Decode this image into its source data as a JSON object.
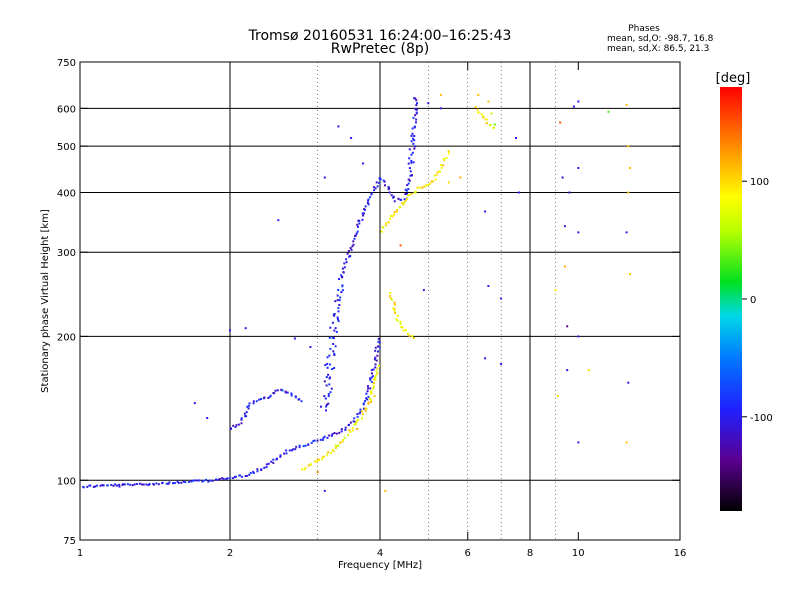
{
  "chart_data": {
    "type": "scatter",
    "title": "Tromsø 20160531 16:24:00–16:25:43",
    "subtitle": "RwPretec (8p)",
    "xlabel": "Frequency [MHz]",
    "ylabel": "Stationary phase Virtual Height [km]",
    "x_scale": "log",
    "y_scale": "log",
    "xlim": [
      1,
      16
    ],
    "ylim": [
      75,
      750
    ],
    "x_ticks": [
      1,
      2,
      4,
      6,
      8,
      10,
      16
    ],
    "x_tick_labels": [
      "1",
      "2",
      "4",
      "6",
      "8",
      "10",
      "16"
    ],
    "x_grid": [
      2,
      4,
      8
    ],
    "x_minor": [
      3,
      5,
      6,
      7,
      9
    ],
    "y_ticks": [
      75,
      100,
      200,
      300,
      400,
      500,
      600,
      750
    ],
    "y_tick_labels": [
      "75",
      "100",
      "200",
      "300",
      "400",
      "500",
      "600",
      "750"
    ],
    "y_grid": [
      100,
      200,
      300,
      400,
      500,
      600
    ],
    "grid": true,
    "stats": {
      "header": "Phases",
      "o_line": "mean, sd,O:  -98.7, 16.8",
      "x_line": "mean, sd,X:  86.5, 21.3"
    },
    "colorbar": {
      "label": "[deg]",
      "min": -180,
      "max": 180,
      "ticks": [
        100,
        0,
        -100
      ],
      "tick_labels": [
        "100",
        "0",
        "-100"
      ],
      "colormap": "rainbow (black-purple-blue-cyan-green-yellow-red)"
    },
    "series": [
      {
        "description": "O-mode trace (phase about -100 deg)",
        "phase": -100,
        "segments": [
          {
            "x": [
              1.0,
              1.3,
              1.6,
              1.85,
              2.0,
              2.2,
              2.4,
              2.6,
              2.8,
              3.0,
              3.2,
              3.4,
              3.55,
              3.7,
              3.8,
              3.9,
              4.0
            ],
            "y": [
              97,
              98,
              99,
              100,
              101,
              103,
              108,
              115,
              118,
              121,
              124,
              128,
              133,
              142,
              155,
              175,
              200
            ]
          },
          {
            "x": [
              3.1,
              3.25,
              3.4,
              3.55,
              3.7,
              3.85,
              4.0,
              4.1,
              4.3,
              4.5,
              4.6,
              4.7,
              4.72
            ],
            "y": [
              140,
              220,
              280,
              320,
              360,
              395,
              430,
              420,
              385,
              390,
              440,
              560,
              640
            ]
          },
          {
            "x": [
              2.0,
              2.1,
              2.2,
              2.4,
              2.5,
              2.7,
              2.8
            ],
            "y": [
              128,
              132,
              145,
              150,
              155,
              150,
              145
            ]
          }
        ]
      },
      {
        "description": "X-mode trace (phase about 90 deg)",
        "phase": 90,
        "segments": [
          {
            "x": [
              2.8,
              3.0,
              3.2,
              3.4,
              3.6,
              3.8,
              3.9,
              4.0
            ],
            "y": [
              105,
              110,
              115,
              122,
              132,
              145,
              160,
              175
            ]
          },
          {
            "x": [
              4.0,
              4.2,
              4.4,
              4.6,
              4.8,
              5.0,
              5.2,
              5.5
            ],
            "y": [
              330,
              355,
              375,
              395,
              410,
              415,
              430,
              490
            ]
          },
          {
            "x": [
              4.2,
              4.3,
              4.4,
              4.5,
              4.6,
              4.7
            ],
            "y": [
              245,
              225,
              210,
              205,
              200,
              198
            ]
          },
          {
            "x": [
              6.2,
              6.5,
              6.8
            ],
            "y": [
              600,
              570,
              540
            ]
          }
        ]
      }
    ],
    "scatter_points": [
      {
        "x": 3.0,
        "y": 104,
        "p": 130
      },
      {
        "x": 3.3,
        "y": 118,
        "p": 60
      },
      {
        "x": 3.6,
        "y": 128,
        "p": 120
      },
      {
        "x": 3.9,
        "y": 150,
        "p": 110
      },
      {
        "x": 6.3,
        "y": 640,
        "p": 110
      },
      {
        "x": 6.6,
        "y": 620,
        "p": 110
      },
      {
        "x": 6.7,
        "y": 585,
        "p": 60
      },
      {
        "x": 6.8,
        "y": 555,
        "p": 40
      },
      {
        "x": 6.5,
        "y": 365,
        "p": -100
      },
      {
        "x": 6.6,
        "y": 255,
        "p": -100
      },
      {
        "x": 6.5,
        "y": 180,
        "p": -100
      },
      {
        "x": 7.0,
        "y": 240,
        "p": -100
      },
      {
        "x": 7.0,
        "y": 175,
        "p": -100
      },
      {
        "x": 7.5,
        "y": 520,
        "p": -100
      },
      {
        "x": 7.6,
        "y": 400,
        "p": -100
      },
      {
        "x": 5.0,
        "y": 615,
        "p": -100
      },
      {
        "x": 5.3,
        "y": 640,
        "p": 110
      },
      {
        "x": 5.3,
        "y": 600,
        "p": -100
      },
      {
        "x": 9.2,
        "y": 560,
        "p": 150
      },
      {
        "x": 9.3,
        "y": 430,
        "p": -120
      },
      {
        "x": 9.4,
        "y": 340,
        "p": -100
      },
      {
        "x": 9.4,
        "y": 280,
        "p": 120
      },
      {
        "x": 9.5,
        "y": 210,
        "p": -140
      },
      {
        "x": 9.5,
        "y": 170,
        "p": -100
      },
      {
        "x": 9.6,
        "y": 400,
        "p": -120
      },
      {
        "x": 9.8,
        "y": 605,
        "p": -100
      },
      {
        "x": 10.0,
        "y": 620,
        "p": -100
      },
      {
        "x": 10.0,
        "y": 450,
        "p": -100
      },
      {
        "x": 10.0,
        "y": 330,
        "p": -100
      },
      {
        "x": 10.0,
        "y": 200,
        "p": -100
      },
      {
        "x": 10.0,
        "y": 120,
        "p": -100
      },
      {
        "x": 9.0,
        "y": 250,
        "p": 100
      },
      {
        "x": 9.1,
        "y": 150,
        "p": 100
      },
      {
        "x": 10.5,
        "y": 170,
        "p": 100
      },
      {
        "x": 11.5,
        "y": 590,
        "p": 30
      },
      {
        "x": 12.5,
        "y": 610,
        "p": 110
      },
      {
        "x": 12.6,
        "y": 500,
        "p": 110
      },
      {
        "x": 12.7,
        "y": 450,
        "p": 110
      },
      {
        "x": 12.6,
        "y": 400,
        "p": 110
      },
      {
        "x": 12.5,
        "y": 330,
        "p": -100
      },
      {
        "x": 12.7,
        "y": 270,
        "p": 110
      },
      {
        "x": 12.6,
        "y": 160,
        "p": -100
      },
      {
        "x": 12.5,
        "y": 120,
        "p": 110
      },
      {
        "x": 3.1,
        "y": 430,
        "p": -100
      },
      {
        "x": 2.5,
        "y": 350,
        "p": -100
      },
      {
        "x": 1.2,
        "y": 97,
        "p": -100
      },
      {
        "x": 5.8,
        "y": 430,
        "p": 120
      },
      {
        "x": 4.4,
        "y": 310,
        "p": 150
      },
      {
        "x": 4.9,
        "y": 250,
        "p": -100
      },
      {
        "x": 3.7,
        "y": 460,
        "p": -100
      },
      {
        "x": 3.3,
        "y": 550,
        "p": -100
      },
      {
        "x": 3.5,
        "y": 520,
        "p": -100
      },
      {
        "x": 4.1,
        "y": 95,
        "p": 110
      },
      {
        "x": 3.1,
        "y": 95,
        "p": -100
      },
      {
        "x": 5.5,
        "y": 420,
        "p": 100
      },
      {
        "x": 2.7,
        "y": 198,
        "p": -100
      },
      {
        "x": 2.9,
        "y": 190,
        "p": -100
      },
      {
        "x": 1.7,
        "y": 145,
        "p": -100
      },
      {
        "x": 1.8,
        "y": 135,
        "p": -100
      },
      {
        "x": 2.0,
        "y": 206,
        "p": -100
      },
      {
        "x": 2.15,
        "y": 208,
        "p": -100
      }
    ]
  }
}
